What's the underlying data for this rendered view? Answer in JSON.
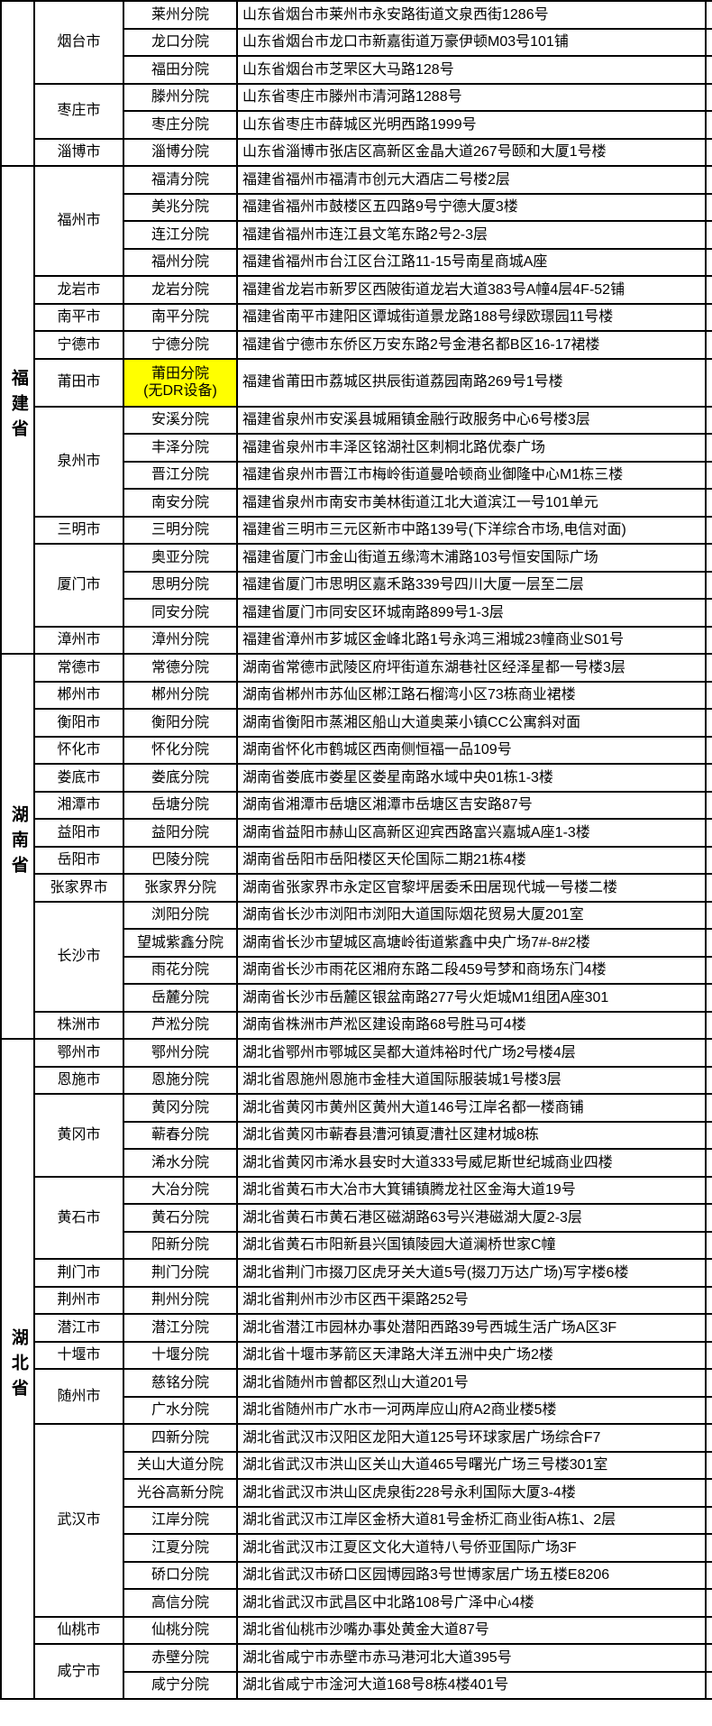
{
  "table": {
    "highlight_color": "#ffff00",
    "sections": [
      {
        "province": "",
        "cities": [
          {
            "name": "烟台市",
            "branches": [
              {
                "name": "莱州分院",
                "address": "山东省烟台市莱州市永安路街道文泉西街1286号"
              },
              {
                "name": "龙口分院",
                "address": "山东省烟台市龙口市新嘉街道万豪伊顿M03号101铺"
              },
              {
                "name": "福田分院",
                "address": "山东省烟台市芝罘区大马路128号"
              }
            ]
          },
          {
            "name": "枣庄市",
            "branches": [
              {
                "name": "滕州分院",
                "address": "山东省枣庄市滕州市清河路1288号"
              },
              {
                "name": "枣庄分院",
                "address": "山东省枣庄市薛城区光明西路1999号"
              }
            ]
          },
          {
            "name": "淄博市",
            "branches": [
              {
                "name": "淄博分院",
                "address": "山东省淄博市张店区高新区金晶大道267号颐和大厦1号楼"
              }
            ]
          }
        ]
      },
      {
        "province": "福建省",
        "cities": [
          {
            "name": "福州市",
            "branches": [
              {
                "name": "福清分院",
                "address": "福建省福州市福清市创元大酒店二号楼2层"
              },
              {
                "name": "美兆分院",
                "address": "福建省福州市鼓楼区五四路9号宁德大厦3楼"
              },
              {
                "name": "连江分院",
                "address": "福建省福州市连江县文笔东路2号2-3层"
              },
              {
                "name": "福州分院",
                "address": "福建省福州市台江区台江路11-15号南星商城A座"
              }
            ]
          },
          {
            "name": "龙岩市",
            "branches": [
              {
                "name": "龙岩分院",
                "address": "福建省龙岩市新罗区西陂街道龙岩大道383号A幢4层4F-52铺"
              }
            ]
          },
          {
            "name": "南平市",
            "branches": [
              {
                "name": "南平分院",
                "address": "福建省南平市建阳区谭城街道景龙路188号绿欧璟园11号楼"
              }
            ]
          },
          {
            "name": "宁德市",
            "branches": [
              {
                "name": "宁德分院",
                "address": "福建省宁德市东侨区万安东路2号金港名都B区16-17裙楼"
              }
            ]
          },
          {
            "name": "莆田市",
            "branches": [
              {
                "name": "莆田分院",
                "note": "(无DR设备)",
                "highlight": true,
                "tall": true,
                "address": "福建省莆田市荔城区拱辰街道荔园南路269号1号楼"
              }
            ]
          },
          {
            "name": "泉州市",
            "branches": [
              {
                "name": "安溪分院",
                "address": "福建省泉州市安溪县城厢镇金融行政服务中心6号楼3层"
              },
              {
                "name": "丰泽分院",
                "address": "福建省泉州市丰泽区铭湖社区刺桐北路优泰广场"
              },
              {
                "name": "晋江分院",
                "address": "福建省泉州市晋江市梅岭街道曼哈顿商业御隆中心M1栋三楼"
              },
              {
                "name": "南安分院",
                "address": "福建省泉州市南安市美林街道江北大道滨江一号101单元"
              }
            ]
          },
          {
            "name": "三明市",
            "branches": [
              {
                "name": "三明分院",
                "address": "福建省三明市三元区新市中路139号(下洋综合市场,电信对面)"
              }
            ]
          },
          {
            "name": "厦门市",
            "branches": [
              {
                "name": "奥亚分院",
                "address": "福建省厦门市金山街道五缘湾木浦路103号恒安国际广场"
              },
              {
                "name": "思明分院",
                "address": "福建省厦门市思明区嘉禾路339号四川大厦一层至二层"
              },
              {
                "name": "同安分院",
                "address": "福建省厦门市同安区环城南路899号1-3层"
              }
            ]
          },
          {
            "name": "漳州市",
            "branches": [
              {
                "name": "漳州分院",
                "address": "福建省漳州市芗城区金峰北路1号永鸿三湘城23幢商业S01号"
              }
            ]
          }
        ]
      },
      {
        "province": "湖南省",
        "cities": [
          {
            "name": "常德市",
            "branches": [
              {
                "name": "常德分院",
                "address": "湖南省常德市武陵区府坪街道东湖巷社区经泽星都一号楼3层"
              }
            ]
          },
          {
            "name": "郴州市",
            "branches": [
              {
                "name": "郴州分院",
                "address": "湖南省郴州市苏仙区郴江路石榴湾小区73栋商业裙楼"
              }
            ]
          },
          {
            "name": "衡阳市",
            "branches": [
              {
                "name": "衡阳分院",
                "address": "湖南省衡阳市蒸湘区船山大道奥莱小镇CC公寓斜对面"
              }
            ]
          },
          {
            "name": "怀化市",
            "branches": [
              {
                "name": "怀化分院",
                "address": "湖南省怀化市鹤城区西南侧恒福一品109号"
              }
            ]
          },
          {
            "name": "娄底市",
            "branches": [
              {
                "name": "娄底分院",
                "address": "湖南省娄底市娄星区娄星南路水域中央01栋1-3楼"
              }
            ]
          },
          {
            "name": "湘潭市",
            "branches": [
              {
                "name": "岳塘分院",
                "address": "湖南省湘潭市岳塘区湘潭市岳塘区吉安路87号"
              }
            ]
          },
          {
            "name": "益阳市",
            "branches": [
              {
                "name": "益阳分院",
                "address": "湖南省益阳市赫山区高新区迎宾西路富兴嘉城A座1-3楼"
              }
            ]
          },
          {
            "name": "岳阳市",
            "branches": [
              {
                "name": "巴陵分院",
                "address": "湖南省岳阳市岳阳楼区天伦国际二期21栋4楼"
              }
            ]
          },
          {
            "name": "张家界市",
            "branches": [
              {
                "name": "张家界分院",
                "address": "湖南省张家界市永定区官黎坪居委禾田居现代城一号楼二楼"
              }
            ]
          },
          {
            "name": "长沙市",
            "branches": [
              {
                "name": "浏阳分院",
                "address": "湖南省长沙市浏阳市浏阳大道国际烟花贸易大厦201室"
              },
              {
                "name": "望城紫鑫分院",
                "address": "湖南省长沙市望城区高塘岭街道紫鑫中央广场7#-8#2楼"
              },
              {
                "name": "雨花分院",
                "address": "湖南省长沙市雨花区湘府东路二段459号梦和商场东门4楼"
              },
              {
                "name": "岳麓分院",
                "address": "湖南省长沙市岳麓区银盆南路277号火炬城M1组团A座301"
              }
            ]
          },
          {
            "name": "株洲市",
            "branches": [
              {
                "name": "芦淞分院",
                "address": "湖南省株洲市芦淞区建设南路68号胜马可4楼"
              }
            ]
          }
        ]
      },
      {
        "province": "湖北省",
        "cities": [
          {
            "name": "鄂州市",
            "branches": [
              {
                "name": "鄂州分院",
                "address": "湖北省鄂州市鄂城区吴都大道炜裕时代广场2号楼4层"
              }
            ]
          },
          {
            "name": "恩施市",
            "branches": [
              {
                "name": "恩施分院",
                "address": "湖北省恩施州恩施市金桂大道国际服装城1号楼3层"
              }
            ]
          },
          {
            "name": "黄冈市",
            "branches": [
              {
                "name": "黄冈分院",
                "address": "湖北省黄冈市黄州区黄州大道146号江岸名都一楼商铺"
              },
              {
                "name": "蕲春分院",
                "address": "湖北省黄冈市蕲春县漕河镇夏漕社区建材城8栋"
              },
              {
                "name": "浠水分院",
                "address": "湖北省黄冈市浠水县安时大道333号威尼斯世纪城商业四楼"
              }
            ]
          },
          {
            "name": "黄石市",
            "branches": [
              {
                "name": "大冶分院",
                "address": "湖北省黄石市大冶市大箕铺镇腾龙社区金海大道19号"
              },
              {
                "name": "黄石分院",
                "address": "湖北省黄石市黄石港区磁湖路63号兴港磁湖大厦2-3层"
              },
              {
                "name": "阳新分院",
                "address": "湖北省黄石市阳新县兴国镇陵园大道澜桥世家C幢"
              }
            ]
          },
          {
            "name": "荆门市",
            "branches": [
              {
                "name": "荆门分院",
                "address": "湖北省荆门市掇刀区虎牙关大道5号(掇刀万达广场)写字楼6楼"
              }
            ]
          },
          {
            "name": "荆州市",
            "branches": [
              {
                "name": "荆州分院",
                "address": "湖北省荆州市沙市区西干渠路252号"
              }
            ]
          },
          {
            "name": "潜江市",
            "branches": [
              {
                "name": "潜江分院",
                "address": "湖北省潜江市园林办事处潜阳西路39号西城生活广场A区3F"
              }
            ]
          },
          {
            "name": "十堰市",
            "branches": [
              {
                "name": "十堰分院",
                "address": "湖北省十堰市茅箭区天津路大洋五洲中央广场2楼"
              }
            ]
          },
          {
            "name": "随州市",
            "branches": [
              {
                "name": "慈铭分院",
                "address": "湖北省随州市曾都区烈山大道201号"
              },
              {
                "name": "广水分院",
                "address": "湖北省随州市广水市一河两岸应山府A2商业楼5楼"
              }
            ]
          },
          {
            "name": "武汉市",
            "branches": [
              {
                "name": "四新分院",
                "address": "湖北省武汉市汉阳区龙阳大道125号环球家居广场综合F7"
              },
              {
                "name": "关山大道分院",
                "address": "湖北省武汉市洪山区关山大道465号曙光广场三号楼301室"
              },
              {
                "name": "光谷高新分院",
                "address": "湖北省武汉市洪山区虎泉街228号永利国际大厦3-4楼"
              },
              {
                "name": "江岸分院",
                "address": "湖北省武汉市江岸区金桥大道81号金桥汇商业街A栋1、2层"
              },
              {
                "name": "江夏分院",
                "address": "湖北省武汉市江夏区文化大道特八号侨亚国际广场3F"
              },
              {
                "name": "硚口分院",
                "address": "湖北省武汉市硚口区园博园路3号世博家居广场五楼E8206"
              },
              {
                "name": "高信分院",
                "address": "湖北省武汉市武昌区中北路108号广泽中心4楼"
              }
            ]
          },
          {
            "name": "仙桃市",
            "branches": [
              {
                "name": "仙桃分院",
                "address": "湖北省仙桃市沙嘴办事处黄金大道87号"
              }
            ]
          },
          {
            "name": "咸宁市",
            "branches": [
              {
                "name": "赤壁分院",
                "address": "湖北省咸宁市赤壁市赤马港河北大道395号"
              },
              {
                "name": "咸宁分院",
                "address": "湖北省咸宁市淦河大道168号8栋4楼401号"
              }
            ]
          }
        ]
      }
    ]
  }
}
